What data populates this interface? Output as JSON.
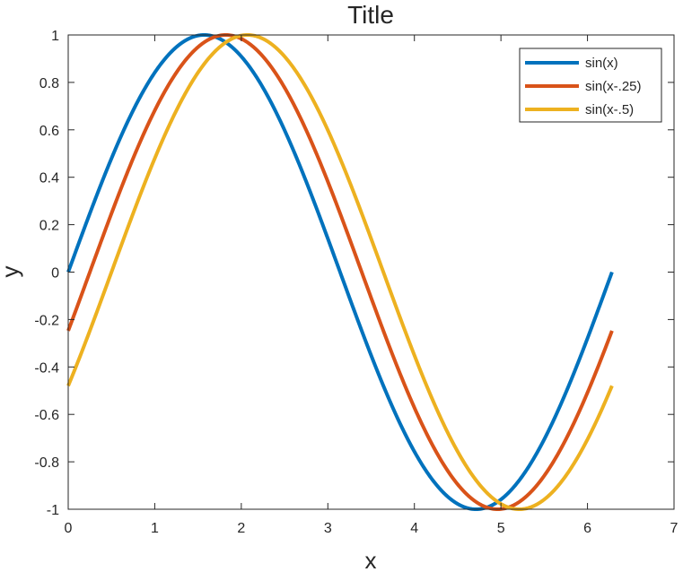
{
  "chart_data": {
    "type": "line",
    "title": "Title",
    "xlabel": "x",
    "ylabel": "y",
    "xlim": [
      0,
      7
    ],
    "ylim": [
      -1,
      1
    ],
    "x_ticks": [
      "0",
      "1",
      "2",
      "3",
      "4",
      "5",
      "6",
      "7"
    ],
    "y_ticks": [
      "-1",
      "-0.8",
      "-0.6",
      "-0.4",
      "-0.2",
      "0",
      "0.2",
      "0.4",
      "0.6",
      "0.8",
      "1"
    ],
    "grid": false,
    "legend_position": "top-right",
    "x_domain": [
      0,
      6.2832
    ],
    "series": [
      {
        "name": "sin(x)",
        "function": "sin(x)",
        "color": "#0072BD"
      },
      {
        "name": "sin(x-.25)",
        "function": "sin(x-0.25)",
        "color": "#D95319"
      },
      {
        "name": "sin(x-.5)",
        "function": "sin(x-0.5)",
        "color": "#EDB120"
      }
    ]
  }
}
